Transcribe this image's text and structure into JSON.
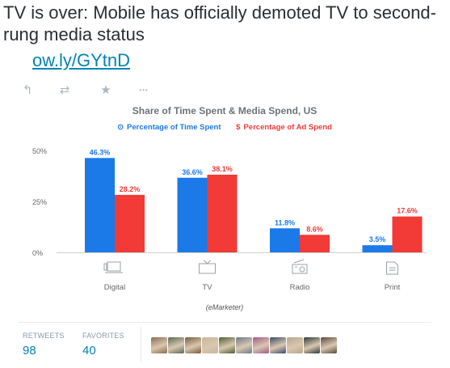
{
  "tweet": {
    "text": "TV is over: Mobile has officially demoted TV to second-rung media status",
    "link": "ow.ly/GYtnD"
  },
  "actions": [
    {
      "icon": "reply-icon",
      "glyph": "↰"
    },
    {
      "icon": "retweet-icon",
      "glyph": "⇄"
    },
    {
      "icon": "favorite-icon",
      "glyph": "★"
    },
    {
      "icon": "more-icon",
      "glyph": "•••"
    }
  ],
  "chart_data": {
    "type": "bar",
    "title": "Share of Time Spent & Media Spend, US",
    "categories": [
      "Digital",
      "TV",
      "Radio",
      "Print"
    ],
    "category_icons": [
      "laptop-icon",
      "tv-icon",
      "radio-icon",
      "print-icon"
    ],
    "series": [
      {
        "name": "Percentage of Time Spent",
        "symbol": "⊙",
        "color": "#1b7ae8",
        "values": [
          46.3,
          36.6,
          11.8,
          3.5
        ],
        "labels": [
          "46.3%",
          "36.6%",
          "11.8%",
          "3.5%"
        ]
      },
      {
        "name": "Percentage of Ad Spend",
        "symbol": "$",
        "color": "#f23a36",
        "values": [
          28.2,
          38.1,
          8.6,
          17.6
        ],
        "labels": [
          "28.2%",
          "38.1%",
          "8.6%",
          "17.6%"
        ]
      }
    ],
    "yticks": [
      0,
      25,
      50
    ],
    "yticklabels": [
      "0%",
      "25%",
      "50%"
    ],
    "ylim": [
      0,
      50
    ],
    "grid": false,
    "legend": "top",
    "source": "(eMarketer)"
  },
  "stats": {
    "retweets_label": "RETWEETS",
    "retweets": "98",
    "favorites_label": "FAVORITES",
    "favorites": "40"
  },
  "avatar_colors": [
    "#8b6b4e",
    "#5a6a58",
    "#7a5a3a",
    "#c8b89a",
    "#4e5e3a",
    "#6b7b8b",
    "#a05a8a",
    "#3a4a6a",
    "#b8a890",
    "#2e3b3c",
    "#5a4a3a"
  ]
}
